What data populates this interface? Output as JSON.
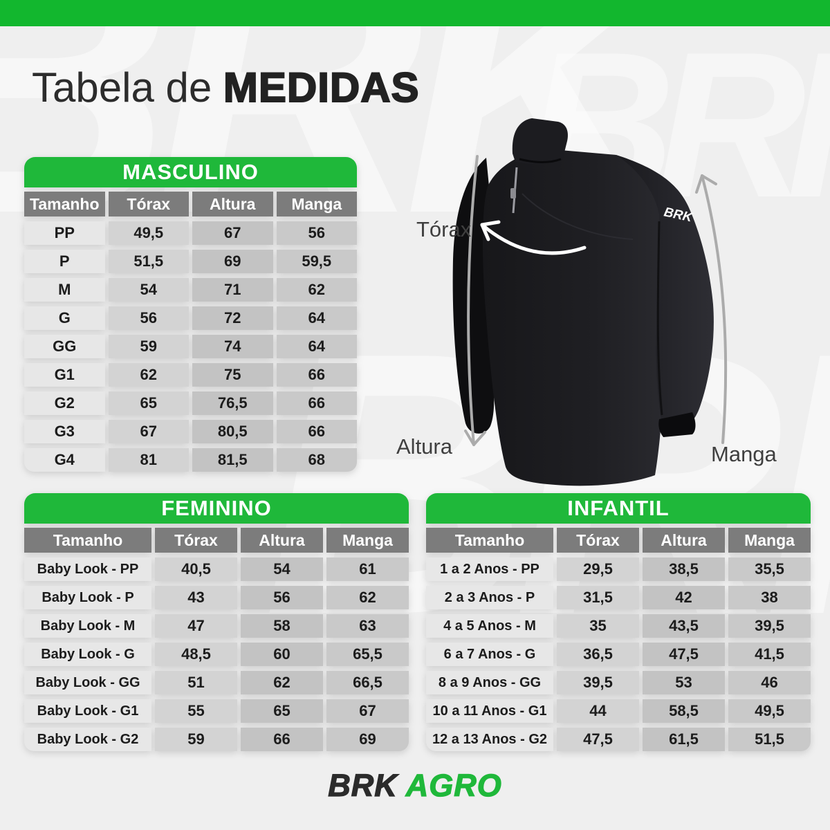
{
  "title": {
    "regular": "Tabela de",
    "bold": "MEDIDAS"
  },
  "watermark": "BRK",
  "colors": {
    "green": "#1fb83a",
    "topbar_green": "#12b72e",
    "header_gray": "#7c7c7c"
  },
  "diagram": {
    "torax_label": "Tórax",
    "altura_label": "Altura",
    "manga_label": "Manga",
    "shirt_logo": "BRK"
  },
  "footer": {
    "brand": "BRK",
    "brand2": "AGRO"
  },
  "tables": [
    {
      "title": "MASCULINO",
      "columns": [
        "Tamanho",
        "Tórax",
        "Altura",
        "Manga"
      ],
      "rows": [
        [
          "PP",
          "49,5",
          "67",
          "56"
        ],
        [
          "P",
          "51,5",
          "69",
          "59,5"
        ],
        [
          "M",
          "54",
          "71",
          "62"
        ],
        [
          "G",
          "56",
          "72",
          "64"
        ],
        [
          "GG",
          "59",
          "74",
          "64"
        ],
        [
          "G1",
          "62",
          "75",
          "66"
        ],
        [
          "G2",
          "65",
          "76,5",
          "66"
        ],
        [
          "G3",
          "67",
          "80,5",
          "66"
        ],
        [
          "G4",
          "81",
          "81,5",
          "68"
        ]
      ]
    },
    {
      "title": "FEMININO",
      "columns": [
        "Tamanho",
        "Tórax",
        "Altura",
        "Manga"
      ],
      "rows": [
        [
          "Baby Look - PP",
          "40,5",
          "54",
          "61"
        ],
        [
          "Baby Look - P",
          "43",
          "56",
          "62"
        ],
        [
          "Baby Look - M",
          "47",
          "58",
          "63"
        ],
        [
          "Baby Look - G",
          "48,5",
          "60",
          "65,5"
        ],
        [
          "Baby Look - GG",
          "51",
          "62",
          "66,5"
        ],
        [
          "Baby Look - G1",
          "55",
          "65",
          "67"
        ],
        [
          "Baby Look - G2",
          "59",
          "66",
          "69"
        ]
      ]
    },
    {
      "title": "INFANTIL",
      "columns": [
        "Tamanho",
        "Tórax",
        "Altura",
        "Manga"
      ],
      "rows": [
        [
          "1 a 2 Anos - PP",
          "29,5",
          "38,5",
          "35,5"
        ],
        [
          "2 a 3 Anos - P",
          "31,5",
          "42",
          "38"
        ],
        [
          "4 a 5 Anos - M",
          "35",
          "43,5",
          "39,5"
        ],
        [
          "6 a 7 Anos - G",
          "36,5",
          "47,5",
          "41,5"
        ],
        [
          "8 a 9 Anos - GG",
          "39,5",
          "53",
          "46"
        ],
        [
          "10 a 11 Anos - G1",
          "44",
          "58,5",
          "49,5"
        ],
        [
          "12 a 13 Anos - G2",
          "47,5",
          "61,5",
          "51,5"
        ]
      ]
    }
  ]
}
